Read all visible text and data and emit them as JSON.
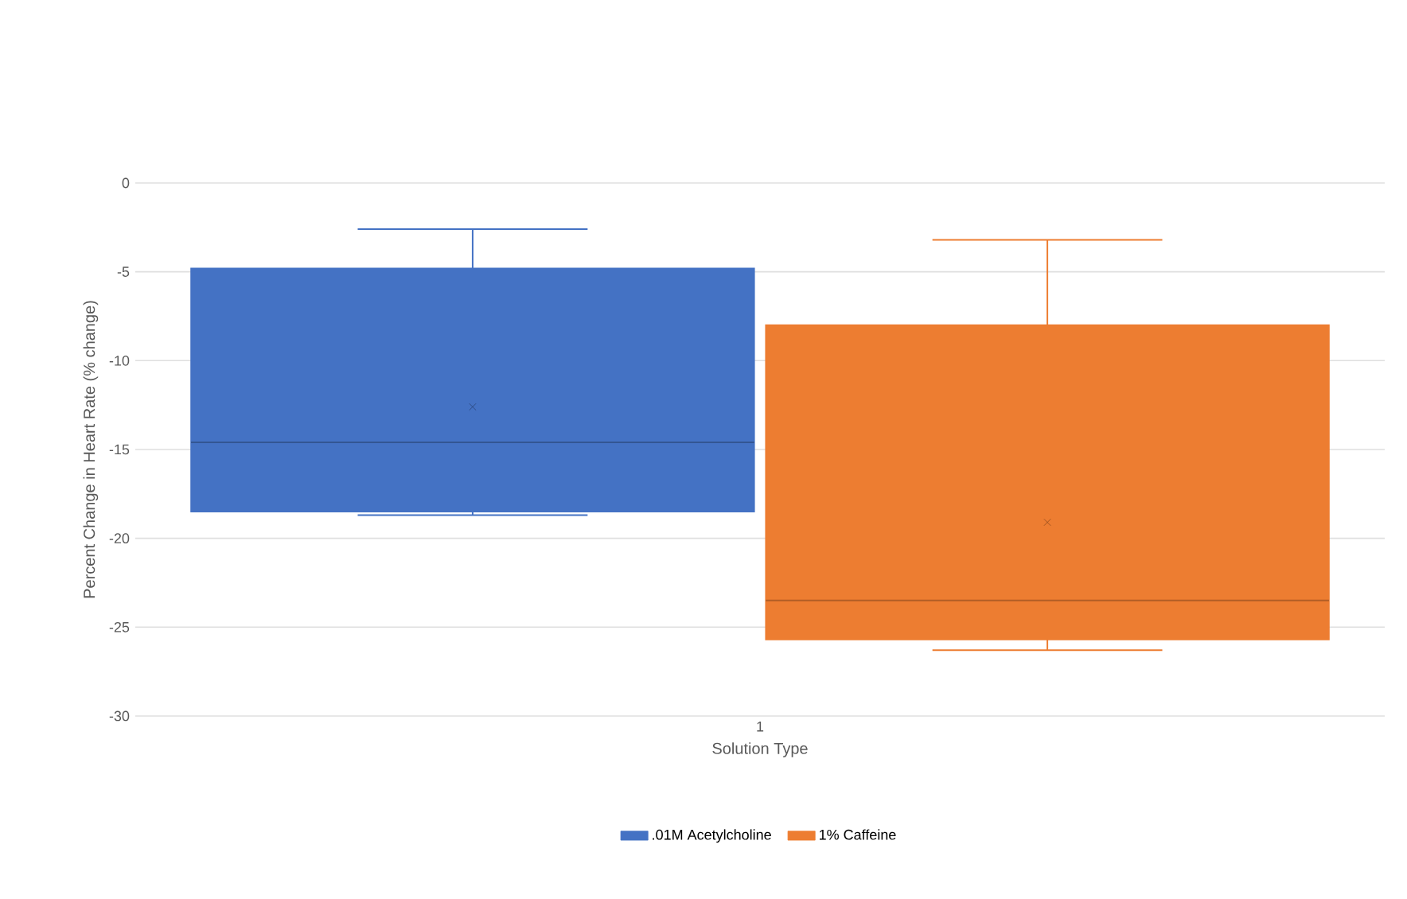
{
  "chart_data": {
    "type": "box",
    "xlabel": "Solution Type",
    "ylabel": "Percent Change in Heart Rate (% change)",
    "categories": [
      "1"
    ],
    "series": [
      {
        "name": ".01M Acetylcholine",
        "color": "#4472c4",
        "boxes": [
          {
            "low": -18.7,
            "q1": -18.5,
            "median": -14.6,
            "q3": -4.8,
            "high": -2.6,
            "mean": -12.6
          }
        ]
      },
      {
        "name": "1% Caffeine",
        "color": "#ed7d31",
        "boxes": [
          {
            "low": -26.3,
            "q1": -25.7,
            "median": -23.5,
            "q3": -8.0,
            "high": -3.2,
            "mean": -19.1
          }
        ]
      }
    ],
    "ylim": [
      -30,
      0
    ],
    "yticks": [
      0,
      -5,
      -10,
      -15,
      -20,
      -25,
      -30
    ],
    "grid": "y",
    "legend": "bottom",
    "marker": "cross"
  }
}
